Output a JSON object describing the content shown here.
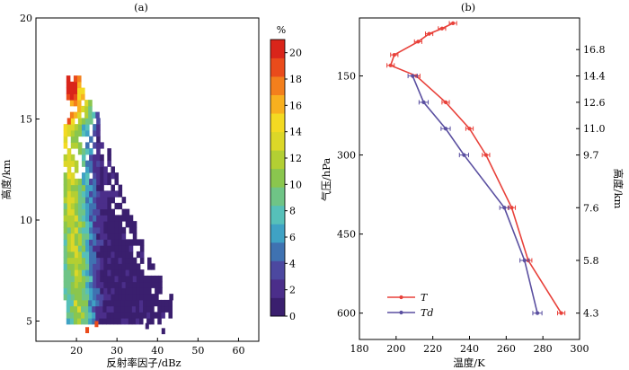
{
  "chart_data": [
    {
      "type": "heatmap",
      "title": "(a)",
      "xlabel": "反射率因子/dBz",
      "ylabel": "高度/km",
      "xlim": [
        10,
        65
      ],
      "ylim": [
        4,
        20
      ],
      "xticks": [
        "20",
        "30",
        "40",
        "50",
        "60"
      ],
      "yticks": [
        "5",
        "10",
        "15",
        "20"
      ],
      "colorbar": {
        "unit": "%",
        "ticks": [
          "0",
          "2",
          "4",
          "6",
          "8",
          "10",
          "12",
          "14",
          "16",
          "18",
          "20"
        ],
        "range": [
          0,
          21
        ],
        "colors": [
          "#3a1f6e",
          "#4b2e8a",
          "#4c48a0",
          "#3f72b1",
          "#3fa2c4",
          "#56c0b9",
          "#6fc486",
          "#8ac64e",
          "#b3cf33",
          "#dcd728",
          "#f3da22",
          "#f8b01f",
          "#f37f1c",
          "#ea4b1b",
          "#d9251a"
        ]
      }
    },
    {
      "type": "line",
      "title": "(b)",
      "xlabel": "温度/K",
      "ylabel": "气压/hPa",
      "ylabel_right": "高度/km",
      "xlim": [
        180,
        300
      ],
      "ylim": [
        40,
        650
      ],
      "xticks": [
        "180",
        "200",
        "220",
        "240",
        "260",
        "280",
        "300"
      ],
      "yticks": [
        "150",
        "300",
        "450",
        "600"
      ],
      "yticks_right": [
        {
          "p": 100,
          "label": "16.8"
        },
        {
          "p": 150,
          "label": "14.4"
        },
        {
          "p": 200,
          "label": "12.6"
        },
        {
          "p": 250,
          "label": "11.0"
        },
        {
          "p": 300,
          "label": "9.7"
        },
        {
          "p": 400,
          "label": "7.6"
        },
        {
          "p": 500,
          "label": "5.8"
        },
        {
          "p": 600,
          "label": "4.3"
        }
      ],
      "legend_position": "bottom-left",
      "series": [
        {
          "name": "T",
          "color": "#e8413a",
          "x": [
            231,
            225,
            218,
            212,
            199,
            197,
            211,
            227,
            240,
            249,
            263,
            272,
            290
          ],
          "y": [
            50,
            60,
            70,
            85,
            110,
            130,
            150,
            200,
            250,
            300,
            400,
            500,
            600
          ],
          "xerr": 2
        },
        {
          "name": "Td",
          "color": "#5a4fa0",
          "x": [
            209,
            215,
            227,
            237,
            259,
            270,
            277
          ],
          "y": [
            150,
            200,
            250,
            300,
            400,
            500,
            600
          ],
          "xerr": 2.5
        }
      ]
    }
  ]
}
